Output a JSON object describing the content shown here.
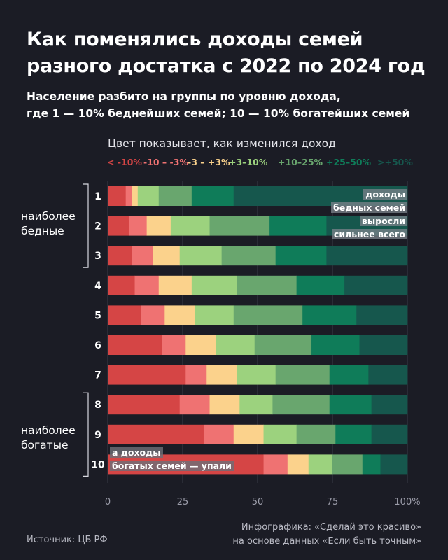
{
  "title": "Как поменялись доходы семей разного достатка с 2022 по 2024 год",
  "subtitle_line1": "Население разбито на группы по уровню дохода,",
  "subtitle_line2": "где 1 — 10% беднейших семей; 10 — 10% богатейших семей",
  "legend_title": "Цвет показывает, как изменился доход",
  "group_top": {
    "line1": "наиболее",
    "line2": "бедные"
  },
  "group_bottom": {
    "line1": "наиболее",
    "line2": "богатые"
  },
  "note_poor": {
    "l1": "доходы",
    "l2": "бедных семей",
    "l3": "выросли",
    "l4": "сильнее всего"
  },
  "note_rich": {
    "l1": "а доходы",
    "l2": "богатых семей — упали"
  },
  "source": "Источник: ЦБ РФ",
  "credit": {
    "line1": "Инфографика: «Сделай это красиво»",
    "line2": "на основе данных «Если быть точным»"
  },
  "colors": {
    "background": "#1b1c25",
    "categories": [
      "#d54545",
      "#ef7272",
      "#fbd28c",
      "#9cd27e",
      "#69a66e",
      "#0f7c59",
      "#16574d"
    ]
  },
  "chart_data": {
    "type": "bar",
    "orientation": "horizontal",
    "stacked": true,
    "categories": [
      "1",
      "2",
      "3",
      "4",
      "5",
      "6",
      "7",
      "8",
      "9",
      "10"
    ],
    "series": [
      {
        "name": "< -10%",
        "values": [
          6,
          7,
          8,
          9,
          11,
          18,
          26,
          24,
          32,
          52
        ]
      },
      {
        "name": "-10 – -3%",
        "values": [
          2,
          6,
          7,
          8,
          8,
          8,
          7,
          10,
          10,
          8
        ]
      },
      {
        "name": "-3 – +3%",
        "values": [
          2,
          8,
          9,
          11,
          10,
          10,
          10,
          10,
          10,
          7
        ]
      },
      {
        "name": "+3–10%",
        "values": [
          7,
          13,
          14,
          15,
          13,
          13,
          13,
          11,
          11,
          8
        ]
      },
      {
        "name": "+10–25%",
        "values": [
          11,
          20,
          18,
          20,
          23,
          19,
          18,
          19,
          13,
          10
        ]
      },
      {
        "name": "+25–50%",
        "values": [
          14,
          19,
          17,
          16,
          18,
          16,
          13,
          14,
          12,
          6
        ]
      },
      {
        "name": ">+50%",
        "values": [
          58,
          27,
          27,
          21,
          17,
          16,
          13,
          12,
          12,
          9
        ]
      }
    ],
    "xticks": [
      "0",
      "25",
      "50",
      "75",
      "100%"
    ],
    "xlim": [
      0,
      100
    ],
    "title": "Как поменялись доходы семей разного достатка с 2022 по 2024 год",
    "legend_title": "Цвет показывает, как изменился доход",
    "legend_labels": [
      "< -10%",
      "-10 – -3%",
      "-3 – +3%",
      "+3–10%",
      "+10–25%",
      "+25–50%",
      ">+50%"
    ],
    "grid": true
  }
}
